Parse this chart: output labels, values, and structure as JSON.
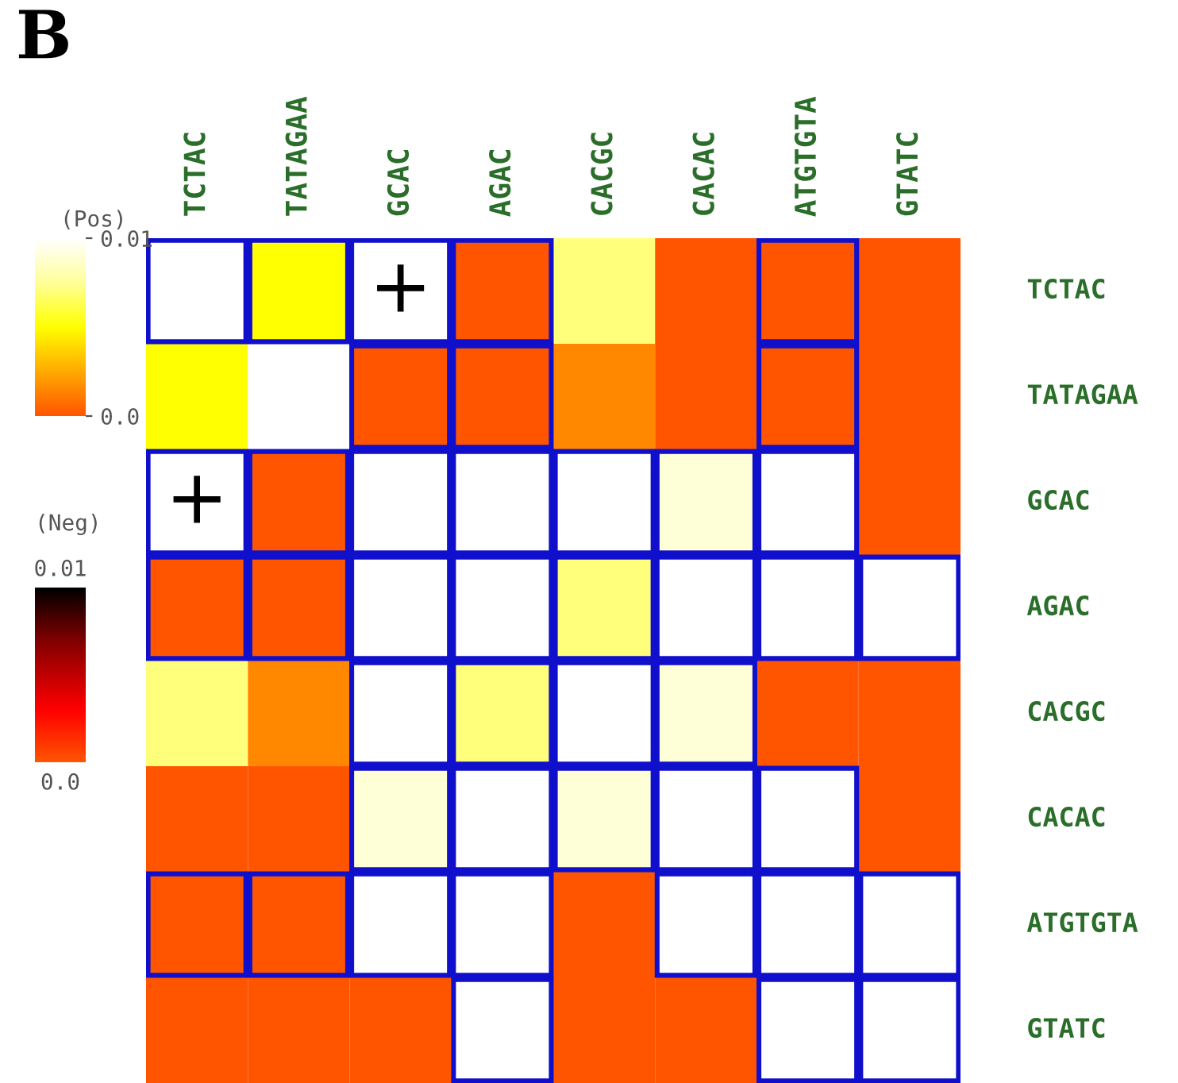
{
  "chart_data": {
    "type": "heatmap",
    "title": "B",
    "categories": [
      "TCTAC",
      "TATAGAA",
      "GCAC",
      "AGAC",
      "CACGC",
      "CACAC",
      "ATGTGTA",
      "GTATC"
    ],
    "y_categories": [
      "TCTAC",
      "TATAGAA",
      "GCAC",
      "AGAC",
      "CACGC",
      "CACAC",
      "ATGTGTA",
      "GTATC"
    ],
    "cells": [
      [
        0.01,
        0.005,
        0.01,
        0.0,
        0.007,
        0.0,
        0.0,
        0.0
      ],
      [
        0.005,
        0.01,
        0.0,
        0.0,
        0.0015,
        0.0,
        0.0,
        0.0
      ],
      [
        0.01,
        0.0,
        0.01,
        0.01,
        0.01,
        0.009,
        0.01,
        0.0
      ],
      [
        0.0,
        0.0,
        0.01,
        0.01,
        0.007,
        0.01,
        0.01,
        0.01
      ],
      [
        0.007,
        0.0015,
        0.01,
        0.007,
        0.01,
        0.009,
        0.0,
        0.0
      ],
      [
        0.0,
        0.0,
        0.009,
        0.01,
        0.009,
        0.01,
        0.01,
        0.0
      ],
      [
        0.0,
        0.0,
        0.01,
        0.01,
        0.0,
        0.01,
        0.01,
        0.01
      ],
      [
        0.0,
        0.0,
        0.0,
        0.01,
        0.0,
        0.0,
        0.01,
        0.01
      ]
    ],
    "clabel": "(Pos)",
    "clim": [
      0,
      0.01
    ],
    "cticks": [
      {
        "value": 0,
        "label": "0.0"
      },
      0.01
    ],
    "cell_labels": [
      [
        null,
        null,
        "+",
        null,
        null,
        null,
        null,
        null
      ],
      [
        null,
        null,
        null,
        null,
        null,
        null,
        null,
        null
      ],
      [
        "+",
        null,
        null,
        null,
        null,
        null,
        null,
        null
      ],
      [
        null,
        null,
        null,
        null,
        null,
        null,
        null,
        null
      ],
      [
        null,
        null,
        null,
        null,
        null,
        null,
        null,
        null
      ],
      [
        null,
        null,
        null,
        null,
        null,
        null,
        null,
        null
      ],
      [
        null,
        null,
        null,
        null,
        null,
        null,
        null,
        null
      ],
      [
        null,
        null,
        null,
        null,
        null,
        null,
        null,
        null
      ]
    ],
    "annotations": [
      "(Neg)",
      "0.01",
      "0.0"
    ]
  }
}
